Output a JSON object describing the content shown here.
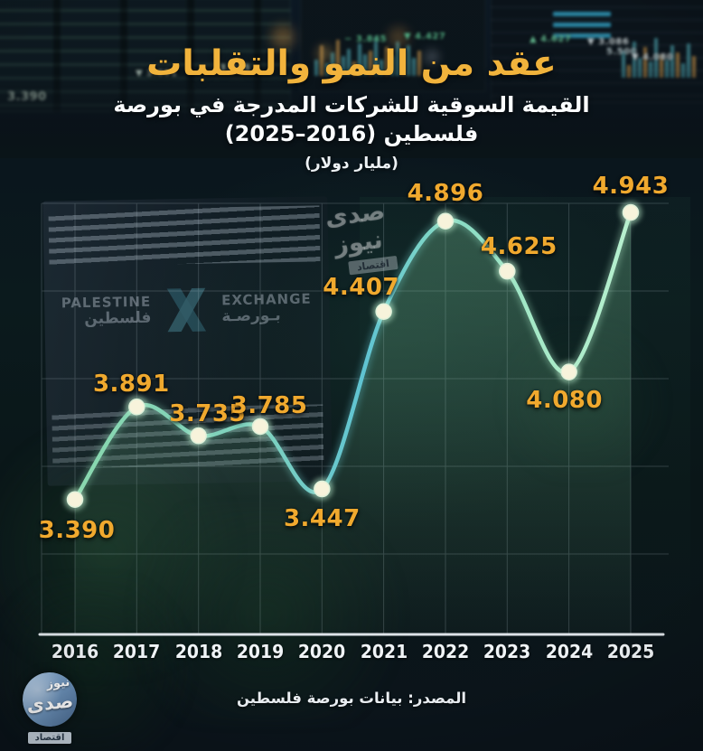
{
  "header": {
    "title": "عقد من النمو والتقلبات",
    "subtitle_line1": "القيمة السوقية للشركات المدرجة في بورصة",
    "subtitle_line2": "فلسطين (2016–2025)",
    "unit_note": "(مليار دولار)"
  },
  "chart_data": {
    "type": "line",
    "title": "القيمة السوقية للشركات المدرجة في بورصة فلسطين (2016–2025)",
    "unit": "مليار دولار",
    "categories": [
      "2016",
      "2017",
      "2018",
      "2019",
      "2020",
      "2021",
      "2022",
      "2023",
      "2024",
      "2025"
    ],
    "values": [
      3.39,
      3.891,
      3.735,
      3.785,
      3.447,
      4.407,
      4.896,
      4.625,
      4.08,
      4.943
    ],
    "value_labels": [
      "3.390",
      "3.891",
      "3.735",
      "3.785",
      "3.447",
      "4.407",
      "4.896",
      "4.625",
      "4.080",
      "4.943"
    ],
    "ylim": [
      2.66,
      5.07
    ],
    "grid": true,
    "legend": "none",
    "line_color": "#8fdec0",
    "dot_fill": "#f7f3db",
    "label_color": "#f0a92e",
    "area_fill": "rgba(130,210,160,0.18)"
  },
  "footer": {
    "source": "المصدر: بيانات بورصة فلسطين"
  },
  "watermark": {
    "brand": "صدى نيوز",
    "badge": "اقتصاد"
  },
  "corner_logo": {
    "word_top": "نيوز",
    "word_bottom": "صدى",
    "badge": "اقتصاد"
  },
  "background": {
    "exchange_sign": {
      "palestine_en": "PALESTINE",
      "palestine_ar": "فلسطين",
      "exchange_en": "EXCHANGE",
      "exchange_ar": "بـورصـة"
    },
    "tickers": [
      "3.390",
      "▼ 3.891",
      "3.735",
      "− 3.845",
      "▼ 4.427",
      "▲ 4.627",
      "▼ 3.086",
      "5.500",
      "▼ 4.080"
    ]
  },
  "colors": {
    "gold_title": "#f1b33c",
    "gold_label": "#f0a92e",
    "line_mint": "#8fdec0",
    "line_cyan": "#5fc3d2",
    "dot_cream": "#f7f3db",
    "axis_white": "#e9eef3",
    "background_navy": "#0b141b"
  }
}
